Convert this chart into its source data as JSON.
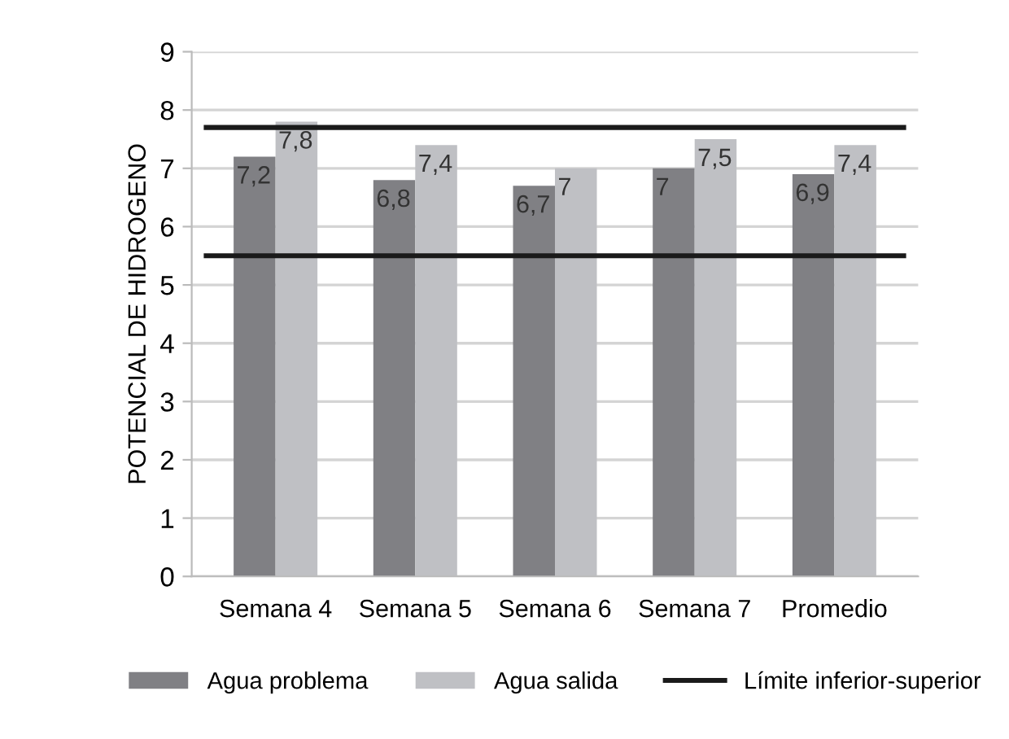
{
  "chart_data": {
    "type": "bar",
    "ylabel": "POTENCIAL DE HIDROGENO",
    "categories": [
      "Semana 4",
      "Semana 5",
      "Semana 6",
      "Semana 7",
      "Promedio"
    ],
    "series": [
      {
        "name": "Agua problema",
        "color": "#808084",
        "values": [
          7.2,
          6.8,
          6.7,
          7,
          6.9
        ]
      },
      {
        "name": "Agua salida",
        "color": "#bfc0c4",
        "values": [
          7.8,
          7.4,
          7,
          7.5,
          7.4
        ]
      }
    ],
    "value_labels": [
      [
        "7,2",
        "6,8",
        "6,7",
        "7",
        "6,9"
      ],
      [
        "7,8",
        "7,4",
        "7",
        "7,5",
        "7,4"
      ]
    ],
    "ref_lines": [
      {
        "axis": "y",
        "value": 7.7,
        "label": "Límite inferior-superior",
        "color": "#1a1a1a"
      },
      {
        "axis": "y",
        "value": 5.5,
        "label": null,
        "color": "#1a1a1a"
      }
    ],
    "ylim": [
      0,
      9
    ],
    "yticks": [
      0,
      1,
      2,
      3,
      4,
      5,
      6,
      7,
      8,
      9
    ],
    "grid": "y",
    "legend": "bottom"
  }
}
